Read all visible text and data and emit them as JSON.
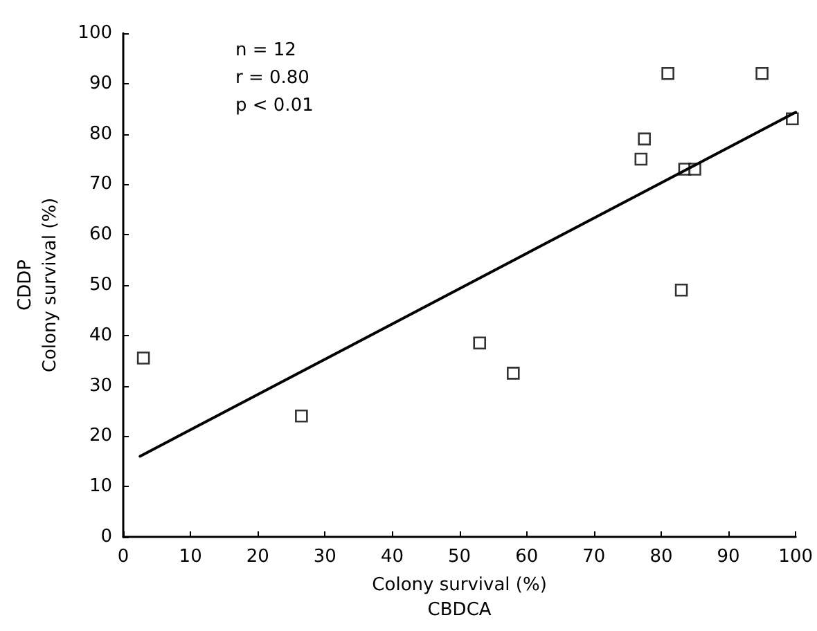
{
  "chart_data": {
    "type": "scatter",
    "xlabel": "Colony survival (%)\nCBDCA",
    "ylabel": "CDDP\nColony survival (%)",
    "annotations": [
      "n = 12",
      "r = 0.80",
      "p < 0.01"
    ],
    "xlim": [
      0,
      100
    ],
    "xticks": [
      0,
      10,
      20,
      30,
      40,
      50,
      60,
      70,
      80,
      90,
      100
    ],
    "ylim": [
      0,
      100
    ],
    "yticks": [
      0,
      10,
      20,
      30,
      40,
      50,
      60,
      70,
      80,
      90,
      100
    ],
    "grid": false,
    "marker": "square",
    "series": [
      {
        "color": "#000000",
        "x": [
          3,
          26.5,
          53,
          58,
          77,
          77.5,
          81,
          83,
          83.5,
          85,
          95,
          99.5
        ],
        "values": [
          35.5,
          24,
          38.5,
          32.5,
          75,
          79,
          92,
          49,
          73,
          73,
          92,
          83
        ]
      },
      {
        "type": "line",
        "color": "#000000",
        "line_style": "solid",
        "marker": "none",
        "x": [
          2.5,
          100
        ],
        "values": [
          16,
          84.3
        ]
      }
    ]
  }
}
